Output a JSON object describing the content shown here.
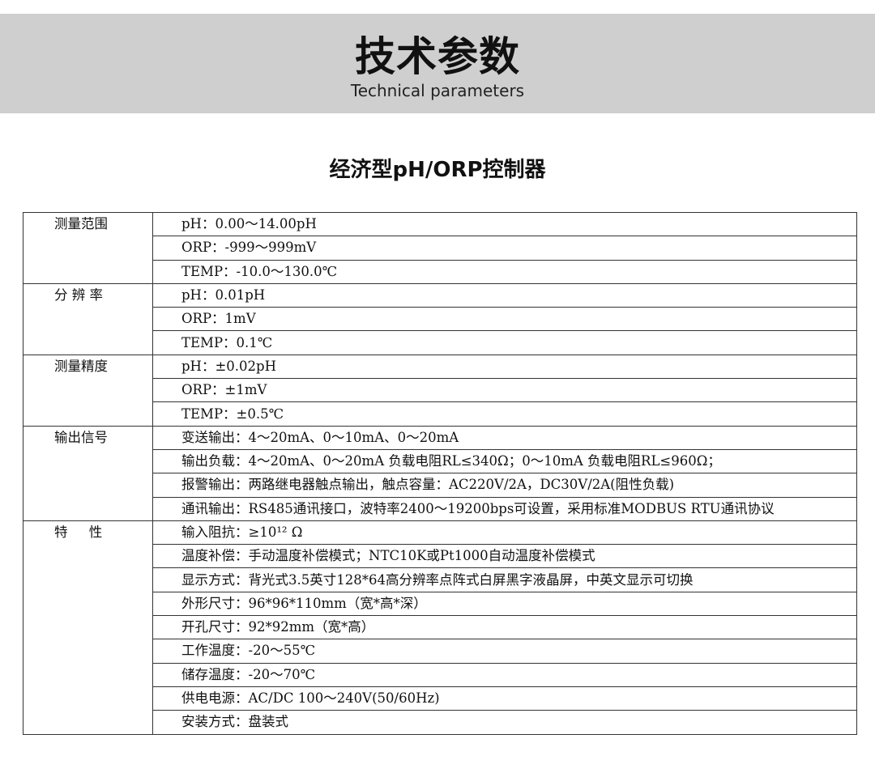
{
  "header": {
    "title": "技术参数",
    "subtitle": "Technical parameters"
  },
  "product_title": "经济型pH/ORP控制器",
  "colors": {
    "band": "#d0cfd0"
  },
  "specs": [
    {
      "label": "测量范围",
      "items": [
        "pH：0.00～14.00pH",
        "ORP：-999～999mV",
        "TEMP：-10.0～130.0℃"
      ]
    },
    {
      "label": "分 辨 率",
      "items": [
        "pH：0.01pH",
        "ORP：1mV",
        "TEMP：0.1℃"
      ]
    },
    {
      "label": "测量精度",
      "items": [
        "pH：±0.02pH",
        "ORP：±1mV",
        "TEMP：±0.5℃"
      ]
    },
    {
      "label": "输出信号",
      "items": [
        "变送输出：4～20mA、0～10mA、0～20mA",
        "输出负载：4～20mA、0～20mA 负载电阻RL≤340Ω；0～10mA 负载电阻RL≤960Ω；",
        "报警输出：两路继电器触点输出，触点容量：AC220V/2A，DC30V/2A(阻性负载)",
        "通讯输出：RS485通讯接口，波特率2400～19200bps可设置，采用标准MODBUS RTU通讯协议"
      ]
    },
    {
      "label": "特     性",
      "items": [
        "输入阻抗：≥10¹² Ω",
        "温度补偿：手动温度补偿模式；NTC10K或Pt1000自动温度补偿模式",
        "显示方式：背光式3.5英寸128*64高分辨率点阵式白屏黑字液晶屏，中英文显示可切换",
        "外形尺寸：96*96*110mm（宽*高*深）",
        "开孔尺寸：92*92mm（宽*高）",
        "工作温度：-20～55℃",
        "储存温度：-20～70℃",
        "供电电源：AC/DC 100～240V(50/60Hz)",
        "安装方式：盘装式"
      ]
    }
  ]
}
